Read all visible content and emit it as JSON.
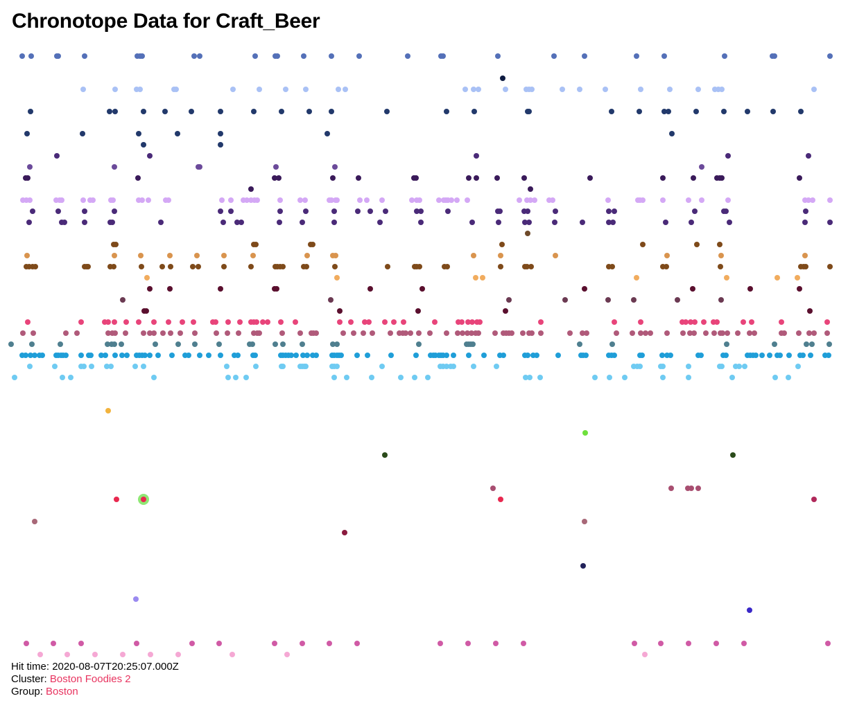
{
  "title": "Chronotope Data for Craft_Beer",
  "info": {
    "hit_time_label": "Hit time:",
    "hit_time": "2020-08-07T20:25:07.000Z",
    "cluster_label": "Cluster:",
    "cluster": "Boston Foodies 2",
    "group_label": "Group:",
    "group": "Boston"
  },
  "highlight_color": "#7be35c",
  "chart_data": {
    "type": "scatter",
    "title": "Chronotope Data for Craft_Beer",
    "xlim": [
      0,
      1190
    ],
    "ylim": [
      0,
      59
    ],
    "grid": false,
    "selected_point": {
      "row": 40,
      "x": 191
    },
    "rows": [
      {
        "row": 0,
        "color": "#5470b8",
        "x": [
          16,
          29,
          66,
          68,
          106,
          182,
          186,
          189,
          264,
          272,
          352,
          381,
          384,
          422,
          462,
          502,
          572,
          620,
          623,
          702,
          783,
          827,
          902,
          942,
          1029,
          1098,
          1101,
          1181
        ]
      },
      {
        "row": 2,
        "color": "#0d1a40",
        "x": [
          709
        ]
      },
      {
        "row": 3,
        "color": "#a9c1f5",
        "x": [
          104,
          150,
          181,
          186,
          235,
          238,
          320,
          358,
          396,
          425,
          472,
          482,
          655,
          667,
          674,
          713,
          743,
          747,
          751,
          795,
          820,
          857,
          908,
          950,
          991,
          1015,
          1020,
          1025,
          1158
        ]
      },
      {
        "row": 5,
        "color": "#22396b",
        "x": [
          28,
          142,
          150,
          191,
          222,
          260,
          302,
          350,
          390,
          430,
          462,
          542,
          628,
          668,
          745,
          747,
          866,
          906,
          942,
          948,
          988,
          1028,
          1062,
          1099,
          1139
        ]
      },
      {
        "row": 7,
        "color": "#22396b",
        "x": [
          23,
          103,
          184,
          240,
          302,
          456,
          953
        ]
      },
      {
        "row": 8,
        "color": "#22396b",
        "x": [
          191,
          302
        ]
      },
      {
        "row": 9,
        "color": "#4a2a78",
        "x": [
          66,
          200,
          671,
          1034,
          1150
        ]
      },
      {
        "row": 10,
        "color": "#6b4a9a",
        "x": [
          27,
          149,
          270,
          272,
          382,
          467,
          996
        ]
      },
      {
        "row": 11,
        "color": "#3a1a5a",
        "x": [
          21,
          24,
          183,
          380,
          386,
          464,
          501,
          581,
          584,
          660,
          671,
          701,
          740,
          835,
          940,
          984,
          1018,
          1022,
          1025,
          1137
        ]
      },
      {
        "row": 12,
        "color": "#3a1a5a",
        "x": [
          346,
          749
        ]
      },
      {
        "row": 13,
        "color": "#d4a8f5",
        "x": [
          17,
          22,
          27,
          65,
          70,
          73,
          104,
          114,
          118,
          144,
          147,
          184,
          189,
          198,
          223,
          227,
          304,
          317,
          335,
          340,
          346,
          351,
          355,
          388,
          417,
          424,
          459,
          462,
          468,
          470,
          503,
          513,
          535,
          578,
          585,
          589,
          617,
          624,
          627,
          630,
          635,
          643,
          658,
          733,
          744,
          749,
          755,
          776,
          781,
          861,
          904,
          907,
          911,
          940,
          977,
          996,
          1034,
          1145,
          1150,
          1156,
          1181
        ]
      },
      {
        "row": 14,
        "color": "#4a2a78",
        "x": [
          31,
          68,
          106,
          149,
          302,
          317,
          388,
          425,
          466,
          500,
          518,
          540,
          585,
          591,
          630,
          702,
          705,
          740,
          745,
          785,
          862,
          870,
          986,
          1028,
          1031,
          1146
        ]
      },
      {
        "row": 15,
        "color": "#4a2a78",
        "x": [
          26,
          73,
          77,
          106,
          143,
          146,
          216,
          306,
          326,
          332,
          387,
          420,
          466,
          532,
          591,
          665,
          703,
          741,
          747,
          784,
          824,
          862,
          868,
          944,
          981,
          1036,
          1145,
          1181
        ]
      },
      {
        "row": 16,
        "color": "#6e4a2a",
        "x": [
          745
        ]
      },
      {
        "row": 17,
        "color": "#7e4a1a",
        "x": [
          148,
          151,
          350,
          353,
          432,
          435,
          708,
          911,
          989,
          1022
        ]
      },
      {
        "row": 18,
        "color": "#d9944e",
        "x": [
          23,
          149,
          187,
          229,
          268,
          307,
          349,
          427,
          464,
          468,
          667,
          706,
          785,
          946,
          1024,
          1145
        ]
      },
      {
        "row": 19,
        "color": "#7e4a1a",
        "x": [
          22,
          26,
          31,
          35,
          106,
          109,
          111,
          143,
          148,
          188,
          218,
          230,
          262,
          270,
          307,
          346,
          381,
          384,
          388,
          392,
          422,
          426,
          467,
          543,
          582,
          585,
          589,
          625,
          629,
          706,
          741,
          744,
          750,
          862,
          867,
          940,
          945,
          1023,
          1139,
          1143,
          1146,
          1181
        ]
      },
      {
        "row": 20,
        "color": "#f1ac5e",
        "x": [
          196,
          470,
          670,
          680,
          902,
          1032,
          1105,
          1134
        ]
      },
      {
        "row": 21,
        "color": "#5a0f2e",
        "x": [
          200,
          229,
          302,
          380,
          383,
          518,
          593,
          827,
          983,
          1066,
          1137
        ]
      },
      {
        "row": 22,
        "color": "#6b3a52",
        "x": [
          161,
          461,
          718,
          799,
          861,
          898,
          961,
          1024
        ]
      },
      {
        "row": 23,
        "color": "#5a0f2e",
        "x": [
          192,
          195,
          474,
          587,
          713,
          1152
        ]
      },
      {
        "row": 24,
        "color": "#e8447a",
        "x": [
          24,
          101,
          135,
          140,
          149,
          166,
          184,
          206,
          227,
          247,
          263,
          291,
          295,
          313,
          330,
          346,
          350,
          354,
          363,
          370,
          389,
          410,
          474,
          490,
          510,
          516,
          539,
          552,
          566,
          611,
          645,
          650,
          659,
          665,
          672,
          676,
          764,
          870,
          908,
          968,
          973,
          980,
          986,
          999,
          1013,
          1018,
          1056,
          1068,
          1111,
          1177
        ]
      },
      {
        "row": 25,
        "color": "#b05a7a",
        "x": [
          17,
          32,
          79,
          95,
          140,
          146,
          150,
          165,
          191,
          200,
          206,
          219,
          230,
          244,
          265,
          296,
          312,
          328,
          350,
          355,
          358,
          391,
          417,
          433,
          436,
          440,
          479,
          494,
          508,
          521,
          547,
          560,
          565,
          569,
          576,
          588,
          604,
          628,
          644,
          651,
          658,
          664,
          670,
          674,
          698,
          710,
          714,
          718,
          722,
          738,
          747,
          751,
          764,
          806,
          824,
          830,
          873,
          896,
          908,
          915,
          922,
          946,
          969,
          979,
          985,
          1002,
          1014,
          1023,
          1026,
          1033,
          1048,
          1065,
          1072,
          1111,
          1115,
          1136,
          1151,
          1158,
          1177
        ]
      },
      {
        "row": 26,
        "color": "#4f7f8f",
        "x": [
          0,
          30,
          71,
          139,
          145,
          149,
          159,
          208,
          241,
          265,
          300,
          344,
          348,
          381,
          392,
          420,
          464,
          470,
          588,
          657,
          660,
          663,
          666,
          820,
          867,
          1032,
          1101,
          1147,
          1155,
          1180
        ]
      },
      {
        "row": 27,
        "color": "#1f9ed8",
        "x": [
          16,
          21,
          28,
          34,
          41,
          45,
          65,
          68,
          72,
          75,
          79,
          101,
          112,
          115,
          130,
          136,
          150,
          160,
          167,
          181,
          185,
          189,
          193,
          200,
          212,
          232,
          251,
          256,
          272,
          285,
          302,
          322,
          327,
          349,
          352,
          389,
          392,
          396,
          400,
          404,
          411,
          421,
          427,
          435,
          440,
          463,
          466,
          470,
          473,
          476,
          499,
          514,
          548,
          584,
          605,
          609,
          612,
          617,
          620,
          623,
          628,
          638,
          660,
          682,
          705,
          710,
          741,
          745,
          753,
          758,
          789,
          822,
          825,
          829,
          862,
          866,
          870,
          907,
          910,
          939,
          946,
          951,
          991,
          995,
          1027,
          1031,
          1062,
          1066,
          1070,
          1074,
          1083,
          1094,
          1105,
          1109,
          1122,
          1138,
          1142,
          1153,
          1174,
          1179
        ]
      },
      {
        "row": 28,
        "color": "#6fcbf2",
        "x": [
          27,
          63,
          101,
          105,
          116,
          138,
          144,
          179,
          191,
          311,
          353,
          390,
          392,
          417,
          420,
          423,
          425,
          463,
          466,
          470,
          535,
          619,
          623,
          628,
          634,
          638,
          667,
          700,
          898,
          903,
          907,
          937,
          940,
          977,
          1022,
          1025,
          1045,
          1050,
          1058,
          1135
        ]
      },
      {
        "row": 29,
        "color": "#6fcbf2",
        "x": [
          5,
          74,
          86,
          206,
          313,
          324,
          339,
          466,
          484,
          520,
          562,
          582,
          601,
          742,
          748,
          763,
          842,
          863,
          885,
          940,
          977,
          1040,
          1102,
          1121
        ]
      },
      {
        "row": 32,
        "color": "#f2b33d",
        "x": [
          140
        ]
      },
      {
        "row": 34,
        "color": "#6ee03c",
        "x": [
          828
        ]
      },
      {
        "row": 36,
        "color": "#2a4a1a",
        "x": [
          539,
          1041
        ]
      },
      {
        "row": 39,
        "color": "#a84e70",
        "x": [
          695,
          952,
          976,
          981,
          991
        ]
      },
      {
        "row": 40,
        "color": "#e8284f",
        "x": [
          152,
          191,
          706
        ]
      },
      {
        "row": 40,
        "color": "#b0285a",
        "x": [
          1158
        ]
      },
      {
        "row": 42,
        "color": "#a86878",
        "x": [
          34,
          827
        ]
      },
      {
        "row": 43,
        "color": "#8a1a3e",
        "x": [
          481
        ]
      },
      {
        "row": 46,
        "color": "#22225a",
        "x": [
          825
        ]
      },
      {
        "row": 49,
        "color": "#9a8af0",
        "x": [
          180
        ]
      },
      {
        "row": 50,
        "color": "#3a28c8",
        "x": [
          1065
        ]
      },
      {
        "row": 53,
        "color": "#d05aa5",
        "x": [
          22,
          61,
          101,
          181,
          261,
          300,
          380,
          420,
          459,
          499,
          619,
          659,
          699,
          739,
          899,
          937,
          977,
          1017,
          1057,
          1178
        ]
      },
      {
        "row": 54,
        "color": "#f5a8d4",
        "x": [
          42,
          81,
          121,
          161,
          201,
          241,
          319,
          398,
          914
        ]
      },
      {
        "row": 55,
        "color": "#5a3a42",
        "x": [
          38,
          357,
          1034,
          1062
        ]
      }
    ]
  }
}
